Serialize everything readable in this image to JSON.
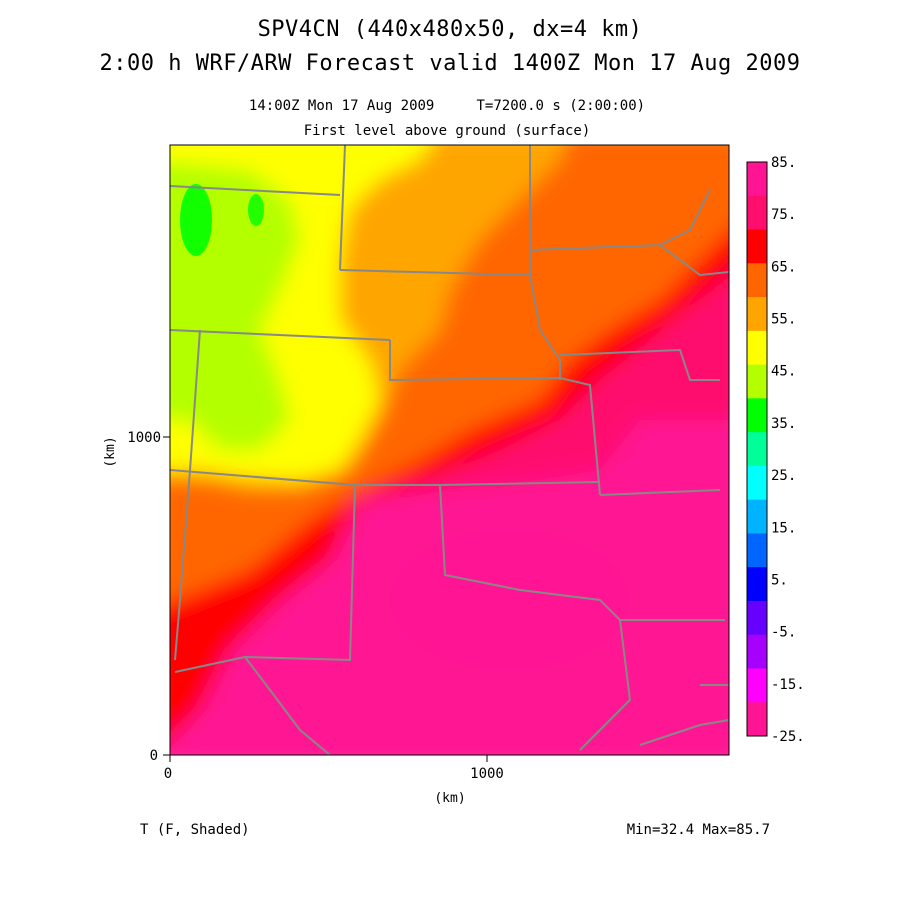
{
  "header": {
    "title_line1": "SPV4CN (440x480x50, dx=4 km)",
    "title_line2": "2:00 h WRF/ARW Forecast valid 1400Z Mon 17 Aug 2009",
    "valid_time": "14:00Z Mon 17 Aug 2009     T=7200.0 s (2:00:00)",
    "level": "First level above ground (surface)"
  },
  "axes": {
    "x_label": "(km)",
    "y_label": "(km)",
    "x_ticks": [
      "0",
      "1000"
    ],
    "y_ticks": [
      "0",
      "1000"
    ]
  },
  "colorbar": {
    "labels": [
      "85.",
      "75.",
      "65.",
      "55.",
      "45.",
      "35.",
      "25.",
      "15.",
      "5.",
      "-5.",
      "-15.",
      "-25."
    ],
    "colors": [
      "#ff1493",
      "#ff0e6e",
      "#ff0000",
      "#ff6600",
      "#ffa500",
      "#ffff00",
      "#b3ff00",
      "#00ff00",
      "#00ff99",
      "#00ffff",
      "#00b3ff",
      "#0066ff",
      "#0000ff",
      "#6600ff",
      "#a600ff",
      "#ff00ff",
      "#ff1493"
    ]
  },
  "footer": {
    "field": "T (F, Shaded)",
    "minmax": "Min=32.4 Max=85.7"
  },
  "chart_data": {
    "type": "heatmap",
    "variable": "T (F, Shaded)",
    "units": "F",
    "min": 32.4,
    "max": 85.7,
    "contour_levels": [
      -25,
      -20,
      -15,
      -10,
      -5,
      0,
      5,
      10,
      15,
      20,
      25,
      30,
      35,
      40,
      45,
      50,
      55,
      60,
      65,
      70,
      75,
      80,
      85
    ],
    "x_range_km": [
      0,
      1760
    ],
    "y_range_km": [
      0,
      1920
    ]
  }
}
